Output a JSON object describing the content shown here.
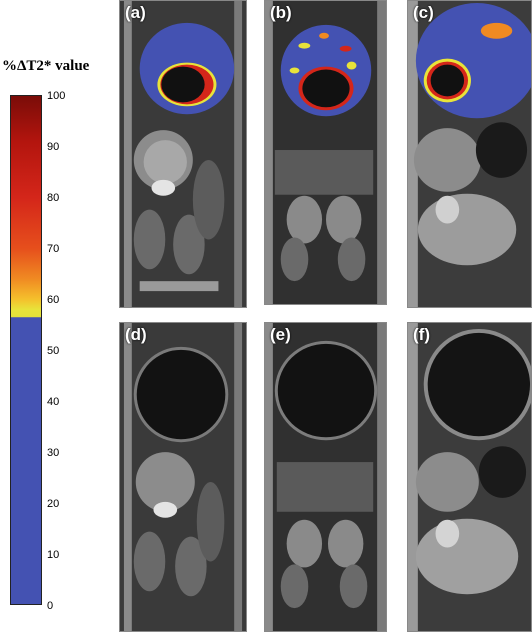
{
  "colorbar": {
    "title": "%ΔT2* value",
    "ticks": [
      "100",
      "90",
      "80",
      "70",
      "60",
      "50",
      "40",
      "30",
      "20",
      "10",
      "0"
    ],
    "colors": {
      "high": "#7a0c08",
      "mid": "#f08a22",
      "threshold": "#e8e33a",
      "low": "#4452b2"
    }
  },
  "panels": {
    "a": {
      "label": "(a)"
    },
    "b": {
      "label": "(b)"
    },
    "c": {
      "label": "(c)"
    },
    "d": {
      "label": "(d)"
    },
    "e": {
      "label": "(e)"
    },
    "f": {
      "label": "(f)"
    }
  }
}
